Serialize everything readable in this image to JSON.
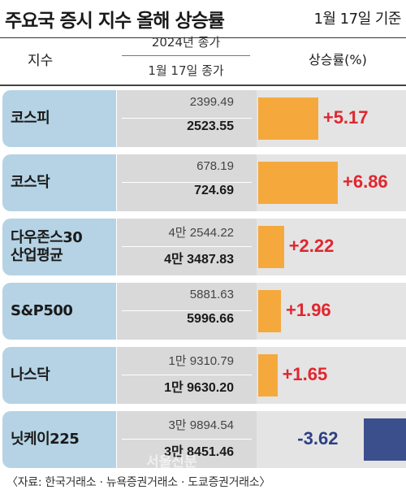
{
  "title": "주요국 증시 지수 올해 상승률",
  "date": "1월 17일 기준",
  "headers": {
    "index": "지수",
    "prev_close": "2024년 종가",
    "current_close": "1월 17일 종가",
    "rate": "상승률(%)"
  },
  "chart_data": {
    "type": "bar",
    "categories": [
      "코스피",
      "코스닥",
      "다우존스30\n산업평균",
      "S&P500",
      "나스닥",
      "닛케이225"
    ],
    "rows": [
      {
        "name": [
          "코스피"
        ],
        "prev": "2399.49",
        "current": "2523.55",
        "rate": 5.17,
        "rate_label": "+5.17"
      },
      {
        "name": [
          "코스닥"
        ],
        "prev": "678.19",
        "current": "724.69",
        "rate": 6.86,
        "rate_label": "+6.86"
      },
      {
        "name": [
          "다우존스30",
          "산업평균"
        ],
        "prev": "4만 2544.22",
        "current": "4만 3487.83",
        "rate": 2.22,
        "rate_label": "+2.22"
      },
      {
        "name": [
          "S&P500"
        ],
        "prev": "5881.63",
        "current": "5996.66",
        "rate": 1.96,
        "rate_label": "+1.96"
      },
      {
        "name": [
          "나스닥"
        ],
        "prev": "1만 9310.79",
        "current": "1만 9630.20",
        "rate": 1.65,
        "rate_label": "+1.65"
      },
      {
        "name": [
          "닛케이225"
        ],
        "prev": "3만 9894.54",
        "current": "3만 8451.46",
        "rate": -3.62,
        "rate_label": "-3.62"
      }
    ],
    "colors": {
      "positive_bar": "#f5a93d",
      "negative_bar": "#3b4f8c",
      "positive_text": "#e0262f",
      "negative_text": "#2f3f82"
    }
  },
  "source": "〈자료: 한국거래소 · 뉴욕증권거래소 · 도쿄증권거래소〉",
  "watermark": "서울신문"
}
